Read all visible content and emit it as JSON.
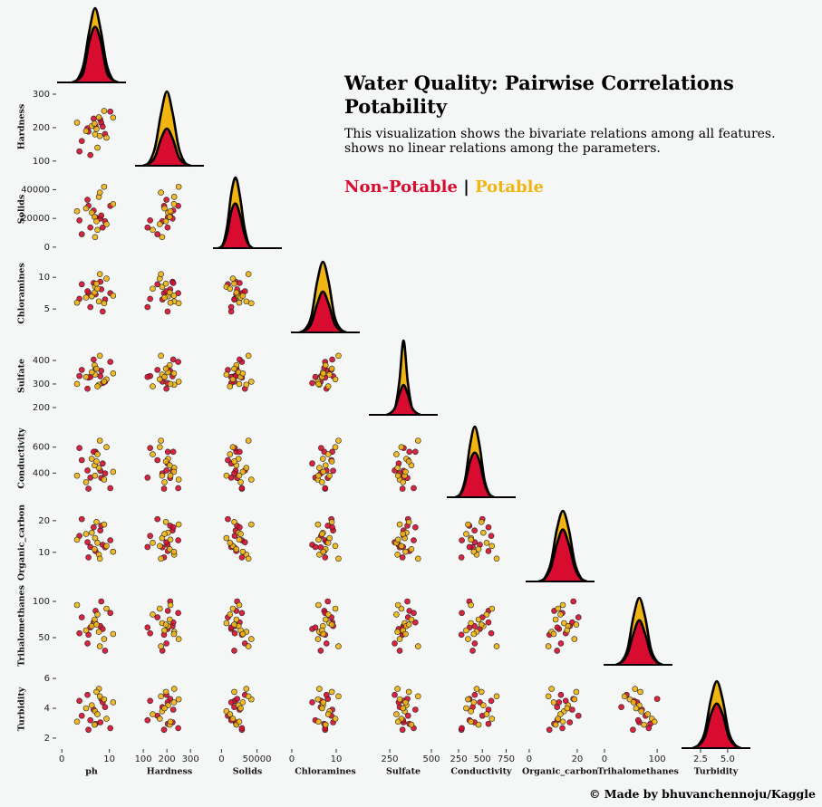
{
  "chart_data": {
    "type": "pairplot",
    "title": [
      "Water Quality: Pairwise Correlations",
      "Potability"
    ],
    "subtitle": [
      "This visualization shows the bivariate relations among all features.",
      "shows no linear relations among the parameters."
    ],
    "legend_separator": "|",
    "credit": "© Made by bhuvanchennoju/Kaggle",
    "series": [
      {
        "name": "Non-Potable",
        "color": "#d80c2f",
        "points": [
          [
            7.1,
            204,
            20790,
            7.3,
            368,
            564,
            10.4,
            87,
            2.96
          ],
          [
            3.7,
            129,
            18630,
            6.6,
            334,
            593,
            15.2,
            56,
            4.5
          ],
          [
            8.1,
            224,
            19910,
            9.3,
            333,
            418,
            16.9,
            66,
            3.06
          ],
          [
            8.3,
            214,
            22020,
            8.1,
            356,
            363,
            18.4,
            100,
            4.63
          ],
          [
            9.1,
            181,
            17980,
            6.5,
            310,
            398,
            11.6,
            32,
            4.08
          ],
          [
            5.6,
            188,
            28750,
            7.5,
            327,
            280,
            8.4,
            54,
            2.56
          ],
          [
            10.2,
            248,
            28750,
            7.5,
            394,
            284,
            13.8,
            84,
            2.67
          ],
          [
            8.6,
            203,
            13670,
            4.6,
            304,
            474,
            12.4,
            62,
            4.4
          ],
          [
            6.0,
            118,
            13670,
            5.3,
            330,
            365,
            11.7,
            64,
            3.2
          ],
          [
            6.7,
            227,
            25480,
            9.1,
            404,
            564,
            17.9,
            71,
            3.91
          ],
          [
            5.4,
            198,
            33000,
            7.8,
            280,
            420,
            13.2,
            42,
            4.9
          ],
          [
            4.2,
            160,
            9000,
            8.9,
            360,
            500,
            20.5,
            78,
            3.5
          ]
        ]
      },
      {
        "name": "Potable",
        "color": "#f0b513",
        "points": [
          [
            7.8,
            231,
            35000,
            6.2,
            297,
            440,
            9.3,
            58,
            5.3
          ],
          [
            7.0,
            180,
            7000,
            8.5,
            340,
            380,
            14.5,
            70,
            3.8
          ],
          [
            6.3,
            205,
            24000,
            7.0,
            350,
            510,
            16.2,
            66,
            4.2
          ],
          [
            9.4,
            170,
            16000,
            9.8,
            320,
            600,
            12.0,
            90,
            3.3
          ],
          [
            8.9,
            250,
            42000,
            5.9,
            310,
            350,
            18.8,
            48,
            4.6
          ],
          [
            6.9,
            212,
            21000,
            7.6,
            380,
            460,
            11.0,
            75,
            2.9
          ],
          [
            5.1,
            190,
            27000,
            6.8,
            330,
            330,
            15.8,
            60,
            4.0
          ],
          [
            7.5,
            140,
            12000,
            8.2,
            290,
            545,
            13.0,
            82,
            3.6
          ],
          [
            10.8,
            230,
            30000,
            7.1,
            345,
            410,
            10.2,
            55,
            4.4
          ],
          [
            7.3,
            196,
            18000,
            9.0,
            365,
            490,
            19.6,
            68,
            5.1
          ],
          [
            3.2,
            215,
            25000,
            6.0,
            300,
            380,
            14.0,
            95,
            3.1
          ],
          [
            8.0,
            175,
            38000,
            10.5,
            420,
            650,
            8.0,
            38,
            4.8
          ]
        ]
      }
    ],
    "variables": [
      {
        "name": "ph",
        "xlim": [
          -1,
          13.5
        ],
        "xticks": [
          0,
          10
        ],
        "kde": {
          "x": [
            2.2,
            3.4,
            4.6,
            5.8,
            7,
            8.2,
            9.4,
            10.6,
            11.8
          ],
          "values": [
            [
              0,
              0.04,
              0.15,
              0.55,
              0.75,
              0.55,
              0.15,
              0.04,
              0
            ],
            [
              0,
              0.05,
              0.25,
              0.7,
              1,
              0.7,
              0.25,
              0.05,
              0
            ]
          ]
        }
      },
      {
        "name": "Hardness",
        "xlim": [
          65,
          357
        ],
        "xticks": [
          100,
          200,
          300
        ],
        "ylim": [
          86,
          319
        ],
        "yticks": [
          100,
          200,
          300
        ],
        "kde": {
          "x": [
            100,
            125,
            150,
            175,
            200,
            225,
            250,
            275,
            300
          ],
          "values": [
            [
              0,
              0.03,
              0.12,
              0.36,
              0.5,
              0.36,
              0.12,
              0.03,
              0
            ],
            [
              0,
              0.05,
              0.25,
              0.7,
              1,
              0.7,
              0.25,
              0.05,
              0
            ]
          ]
        }
      },
      {
        "name": "Solids",
        "xlim": [
          -12000,
          85000
        ],
        "xticks": [
          0,
          50000
        ],
        "ylim": [
          -700,
          53500
        ],
        "yticks": [
          0,
          20000,
          40000
        ],
        "kde": {
          "x": [
            -4000,
            2000,
            8000,
            14000,
            20000,
            26000,
            32000,
            38000,
            44000
          ],
          "values": [
            [
              0,
              0.04,
              0.2,
              0.5,
              0.6,
              0.45,
              0.2,
              0.05,
              0
            ],
            [
              0,
              0.05,
              0.3,
              0.75,
              0.95,
              0.7,
              0.3,
              0.06,
              0
            ]
          ]
        }
      },
      {
        "name": "Chloramines",
        "xlim": [
          -0.2,
          15.3
        ],
        "xticks": [
          0,
          10
        ],
        "ylim": [
          1.3,
          13.6
        ],
        "yticks": [
          5,
          10
        ],
        "kde": {
          "x": [
            1.8,
            3.1,
            4.4,
            5.7,
            7,
            8.3,
            9.6,
            10.9,
            12.2
          ],
          "values": [
            [
              0,
              0.03,
              0.12,
              0.38,
              0.55,
              0.38,
              0.12,
              0.03,
              0
            ],
            [
              0,
              0.05,
              0.22,
              0.68,
              0.95,
              0.68,
              0.22,
              0.05,
              0
            ]
          ]
        }
      },
      {
        "name": "Sulfate",
        "xlim": [
          125,
          538
        ],
        "xticks": [
          250,
          500
        ],
        "ylim": [
          169,
          500
        ],
        "yticks": [
          200,
          300,
          400
        ],
        "kde": {
          "x": [
            233,
            258,
            283,
            308,
            333,
            358,
            383,
            408,
            433
          ],
          "values": [
            [
              0,
              0.03,
              0.1,
              0.28,
              0.4,
              0.28,
              0.1,
              0.03,
              0
            ],
            [
              0,
              0.02,
              0.1,
              0.45,
              1,
              0.45,
              0.1,
              0.02,
              0
            ]
          ]
        }
      },
      {
        "name": "Conductivity",
        "xlim": [
          126,
          850
        ],
        "xticks": [
          250,
          500,
          750
        ],
        "ylim": [
          214,
          814
        ],
        "yticks": [
          400,
          600
        ],
        "kde": {
          "x": [
            220,
            270,
            320,
            370,
            420,
            470,
            520,
            570,
            620
          ],
          "values": [
            [
              0,
              0.04,
              0.2,
              0.48,
              0.6,
              0.48,
              0.2,
              0.04,
              0
            ],
            [
              0,
              0.05,
              0.25,
              0.7,
              0.95,
              0.7,
              0.25,
              0.05,
              0
            ]
          ]
        }
      },
      {
        "name": "Organic_carbon",
        "xlim": [
          -1.5,
          27.2
        ],
        "xticks": [
          0,
          20
        ],
        "ylim": [
          0.8,
          25.4
        ],
        "yticks": [
          10,
          20
        ],
        "kde": {
          "x": [
            4,
            6.5,
            9,
            11.5,
            14,
            16.5,
            19,
            21.5,
            24
          ],
          "values": [
            [
              0,
              0.04,
              0.18,
              0.5,
              0.7,
              0.5,
              0.18,
              0.04,
              0
            ],
            [
              0,
              0.05,
              0.25,
              0.7,
              0.95,
              0.7,
              0.25,
              0.05,
              0
            ]
          ]
        }
      },
      {
        "name": "Trihalomethanes",
        "xlim": [
          -1.7,
          129
        ],
        "xticks": [
          0,
          100
        ],
        "ylim": [
          12.5,
          120
        ],
        "yticks": [
          50,
          100
        ],
        "kde": {
          "x": [
            22,
            33,
            44,
            55,
            66,
            77,
            88,
            99,
            110
          ],
          "values": [
            [
              0,
              0.04,
              0.15,
              0.42,
              0.6,
              0.42,
              0.15,
              0.04,
              0
            ],
            [
              0,
              0.05,
              0.22,
              0.65,
              0.9,
              0.65,
              0.22,
              0.05,
              0
            ]
          ]
        }
      },
      {
        "name": "Turbidity",
        "xlim": [
          0.75,
          7.1
        ],
        "xticks": [
          2.5,
          {
            "value": 5,
            "label": "5.0"
          }
        ],
        "ylim": [
          1.33,
          6.55
        ],
        "yticks": [
          2,
          4,
          6
        ],
        "kde": {
          "x": [
            1.8,
            2.35,
            2.9,
            3.45,
            4,
            4.55,
            5.1,
            5.65,
            6.2
          ],
          "values": [
            [
              0,
              0.04,
              0.15,
              0.45,
              0.6,
              0.45,
              0.15,
              0.04,
              0
            ],
            [
              0,
              0.05,
              0.22,
              0.65,
              0.9,
              0.65,
              0.22,
              0.05,
              0
            ]
          ]
        }
      }
    ]
  }
}
